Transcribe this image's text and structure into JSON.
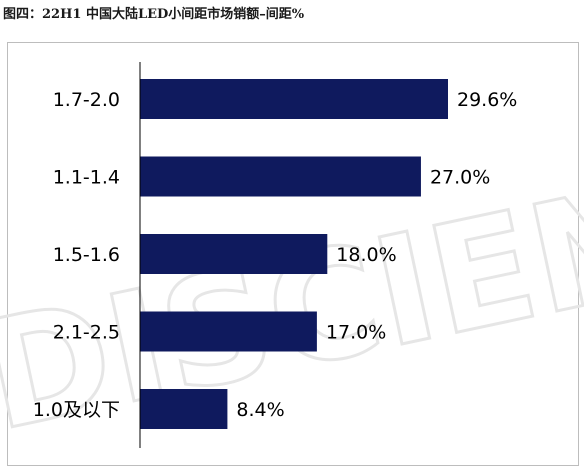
{
  "header": {
    "title": "图四：22H1 中国大陆LED小间距市场销额–间距%"
  },
  "watermark": {
    "text": "DISCIEN"
  },
  "colors": {
    "bar": "#0f1a5e",
    "axis": "#000000",
    "frame": "#bdbdbd"
  },
  "chart_data": {
    "type": "bar",
    "orientation": "horizontal",
    "title": "图四：22H1 中国大陆LED小间距市场销额–间距%",
    "categories": [
      "1.7-2.0",
      "1.1-1.4",
      "1.5-1.6",
      "2.1-2.5",
      "1.0及以下"
    ],
    "values": [
      29.6,
      27.0,
      18.0,
      17.0,
      8.4
    ],
    "value_labels": [
      "29.6%",
      "27.0%",
      "18.0%",
      "17.0%",
      "8.4%"
    ],
    "xlabel": "",
    "ylabel": "",
    "xlim": [
      0,
      35
    ],
    "grid": false,
    "legend": "none"
  }
}
